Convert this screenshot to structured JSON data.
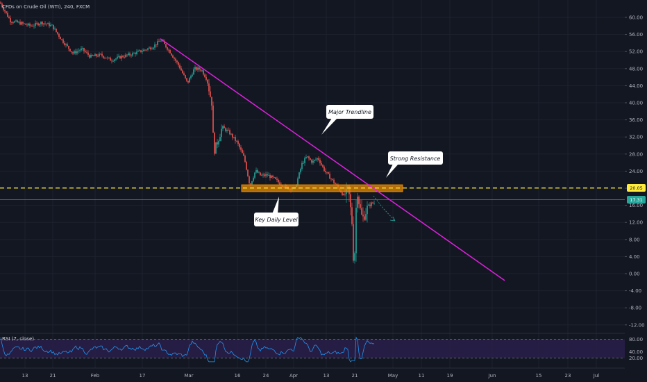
{
  "header": {
    "symbol_title": "CFDs on Crude Oil (WTI), 240, FXCM"
  },
  "colors": {
    "background": "#131722",
    "up_candle": "#26a69a",
    "down_candle": "#ef5350",
    "trendline": "#e020e0",
    "resistance_zone": "#e88a00",
    "dashed_level": "#ffeb3b",
    "current_price_line": "#26a69a",
    "rsi_line": "#2196f3",
    "rsi_band": "#2a1f4a",
    "arrow": "#26a69a"
  },
  "annotations": {
    "major_trendline": "Major Trendline",
    "strong_resistance": "Strong Resistance",
    "key_daily_level": "Key Daily Level"
  },
  "price_tags": {
    "level": "20.05",
    "current": "17.31"
  },
  "rsi": {
    "label": "RSI (7, close)",
    "ticks": [
      "80.00",
      "40.00",
      "20.00"
    ],
    "levels": [
      80,
      20
    ]
  },
  "chart_data": {
    "type": "candlestick",
    "title": "CFDs on Crude Oil (WTI), 240, FXCM",
    "y_ticks": [
      "60.00",
      "56.00",
      "52.00",
      "48.00",
      "44.00",
      "40.00",
      "36.00",
      "32.00",
      "28.00",
      "24.00",
      "20.00",
      "16.00",
      "12.00",
      "8.00",
      "4.00",
      "0.00",
      "-4.00",
      "-8.00",
      "-12.00"
    ],
    "x_ticks": [
      "13",
      "21",
      "Feb",
      "17",
      "Mar",
      "16",
      "24",
      "Apr",
      "13",
      "21",
      "May",
      "11",
      "19",
      "Jun",
      "15",
      "23",
      "Jul"
    ],
    "ylim": [
      -12,
      62
    ],
    "horizontal_level": 20.05,
    "current_price": 17.31,
    "zone": {
      "low": 19.2,
      "high": 20.8,
      "x_start": "Mar 16",
      "x_end": "Apr 28"
    },
    "trendline": {
      "start": {
        "x": "Feb 19",
        "y": 55
      },
      "end": {
        "x": "Jun 7",
        "y": -1.6
      }
    },
    "path": [
      [
        0,
        63.5
      ],
      [
        15,
        59.2
      ],
      [
        30,
        58.6
      ],
      [
        45,
        58.0
      ],
      [
        60,
        58.8
      ],
      [
        75,
        58.0
      ],
      [
        90,
        54.5
      ],
      [
        105,
        51.6
      ],
      [
        118,
        52.6
      ],
      [
        130,
        50.8
      ],
      [
        145,
        51.2
      ],
      [
        160,
        50.0
      ],
      [
        175,
        50.8
      ],
      [
        190,
        51.4
      ],
      [
        205,
        52.2
      ],
      [
        220,
        53.1
      ],
      [
        232,
        54.7
      ],
      [
        245,
        51.9
      ],
      [
        258,
        48.6
      ],
      [
        270,
        44.6
      ],
      [
        280,
        48.0
      ],
      [
        290,
        47.8
      ],
      [
        298,
        45.5
      ],
      [
        305,
        40.0
      ],
      [
        308,
        28.5
      ],
      [
        314,
        31.2
      ],
      [
        320,
        34.3
      ],
      [
        330,
        33.1
      ],
      [
        342,
        30.6
      ],
      [
        352,
        27.0
      ],
      [
        360,
        20.6
      ],
      [
        368,
        24.1
      ],
      [
        376,
        22.9
      ],
      [
        385,
        23.1
      ],
      [
        395,
        22.2
      ],
      [
        405,
        20.9
      ],
      [
        415,
        20.0
      ],
      [
        425,
        19.9
      ],
      [
        435,
        25.7
      ],
      [
        442,
        27.4
      ],
      [
        450,
        26.1
      ],
      [
        458,
        27.1
      ],
      [
        468,
        24.0
      ],
      [
        478,
        22.0
      ],
      [
        488,
        19.9
      ],
      [
        495,
        18.3
      ],
      [
        502,
        19.7
      ],
      [
        507,
        12.0
      ],
      [
        510,
        0.1
      ],
      [
        514,
        20.5
      ],
      [
        518,
        15.7
      ],
      [
        522,
        12.7
      ],
      [
        526,
        14.2
      ],
      [
        530,
        15.7
      ],
      [
        535,
        16.4
      ],
      [
        540,
        16.7
      ]
    ]
  }
}
